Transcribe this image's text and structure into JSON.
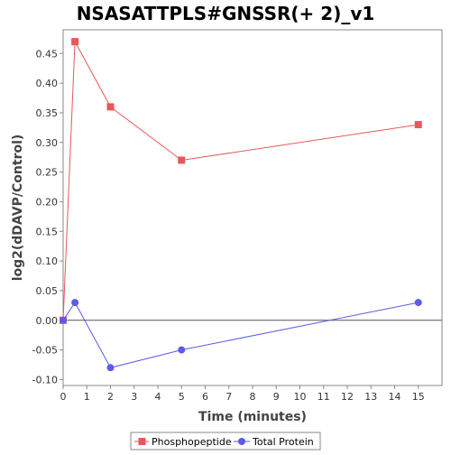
{
  "chart_data": {
    "type": "line",
    "title": "NSASATTPLS#GNSSR(+ 2)_v1",
    "xlabel": "Time (minutes)",
    "ylabel": "log2(dDAVP/Control)",
    "xlim": [
      0,
      16
    ],
    "ylim": [
      -0.11,
      0.49
    ],
    "x_ticks": [
      0,
      1,
      2,
      3,
      4,
      5,
      6,
      7,
      8,
      9,
      10,
      11,
      12,
      13,
      14,
      15
    ],
    "y_ticks": [
      -0.1,
      -0.05,
      0.0,
      0.05,
      0.1,
      0.15,
      0.2,
      0.25,
      0.3,
      0.35,
      0.4,
      0.45
    ],
    "y_tick_labels": [
      "-0.10",
      "-0.05",
      "0.00",
      "0.05",
      "0.10",
      "0.15",
      "0.20",
      "0.25",
      "0.30",
      "0.35",
      "0.40",
      "0.45"
    ],
    "zero_line": true,
    "grid": false,
    "legend_position": "bottom",
    "series": [
      {
        "name": "Phosphopeptide",
        "color": "#e8585a",
        "marker": "square",
        "x": [
          0,
          0.5,
          2,
          5,
          15
        ],
        "y": [
          0.0,
          0.47,
          0.36,
          0.27,
          0.33
        ]
      },
      {
        "name": "Total Protein",
        "color": "#5b5be8",
        "marker": "circle",
        "x": [
          0,
          0.5,
          2,
          5,
          15
        ],
        "y": [
          0.0,
          0.03,
          -0.08,
          -0.05,
          0.03
        ]
      }
    ]
  }
}
